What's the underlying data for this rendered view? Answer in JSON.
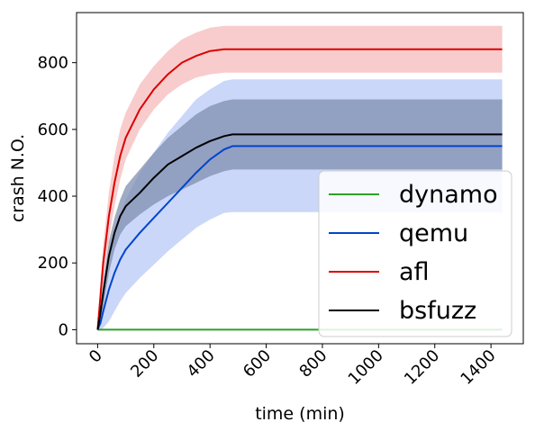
{
  "chart_data": {
    "type": "line",
    "title": "",
    "xlabel": "time (min)",
    "ylabel": "crash N.O.",
    "xlim": [
      -75,
      1515
    ],
    "ylim": [
      -42,
      950
    ],
    "xticks": [
      0,
      200,
      400,
      600,
      800,
      1000,
      1200,
      1400
    ],
    "yticks": [
      0,
      200,
      400,
      600,
      800
    ],
    "xtick_labels": [
      "0",
      "200",
      "400",
      "600",
      "800",
      "1000",
      "1200",
      "1400"
    ],
    "ytick_labels": [
      "0",
      "200",
      "400",
      "600",
      "800"
    ],
    "grid": false,
    "legend_position": "lower right",
    "x": [
      0,
      10,
      20,
      40,
      60,
      80,
      100,
      150,
      200,
      250,
      300,
      350,
      400,
      450,
      480,
      600,
      800,
      1000,
      1200,
      1440
    ],
    "series": [
      {
        "name": "dynamo",
        "color": "#2ca02c",
        "values": [
          0,
          0,
          0,
          0,
          0,
          0,
          0,
          0,
          0,
          0,
          0,
          0,
          0,
          0,
          0,
          0,
          0,
          0,
          0,
          0
        ]
      },
      {
        "name": "qemu",
        "color": "#0044cc",
        "band_color": "#b3c6f5",
        "values": [
          0,
          20,
          55,
          120,
          170,
          210,
          240,
          290,
          335,
          380,
          425,
          470,
          510,
          540,
          550,
          550,
          550,
          550,
          550,
          550
        ],
        "band_low": [
          0,
          0,
          5,
          25,
          55,
          85,
          110,
          155,
          195,
          235,
          270,
          305,
          330,
          350,
          352,
          352,
          352,
          352,
          352,
          352
        ],
        "band_high": [
          0,
          40,
          95,
          195,
          280,
          340,
          390,
          470,
          530,
          590,
          640,
          690,
          720,
          745,
          750,
          750,
          750,
          750,
          750,
          750
        ]
      },
      {
        "name": "afl",
        "color": "#dd0000",
        "band_color": "#f5b7b7",
        "values": [
          0,
          100,
          200,
          340,
          440,
          520,
          575,
          660,
          720,
          765,
          800,
          820,
          835,
          840,
          840,
          840,
          840,
          840,
          840,
          840
        ],
        "band_low": [
          0,
          60,
          140,
          270,
          370,
          450,
          510,
          600,
          660,
          705,
          735,
          755,
          765,
          770,
          770,
          770,
          770,
          770,
          770,
          770
        ],
        "band_high": [
          0,
          140,
          255,
          410,
          520,
          600,
          650,
          735,
          790,
          835,
          870,
          890,
          905,
          910,
          910,
          910,
          910,
          910,
          910,
          910
        ]
      },
      {
        "name": "bsfuzz",
        "color": "#000000",
        "band_color": "#7f8db0",
        "values": [
          0,
          50,
          110,
          220,
          290,
          340,
          370,
          410,
          455,
          495,
          520,
          545,
          565,
          580,
          585,
          585,
          585,
          585,
          585,
          585
        ],
        "band_low": [
          0,
          30,
          70,
          170,
          240,
          285,
          310,
          345,
          375,
          400,
          420,
          440,
          460,
          475,
          480,
          480,
          480,
          480,
          480,
          480
        ],
        "band_high": [
          0,
          70,
          140,
          265,
          335,
          390,
          430,
          480,
          530,
          575,
          610,
          645,
          670,
          685,
          690,
          690,
          690,
          690,
          690,
          690
        ]
      }
    ]
  }
}
